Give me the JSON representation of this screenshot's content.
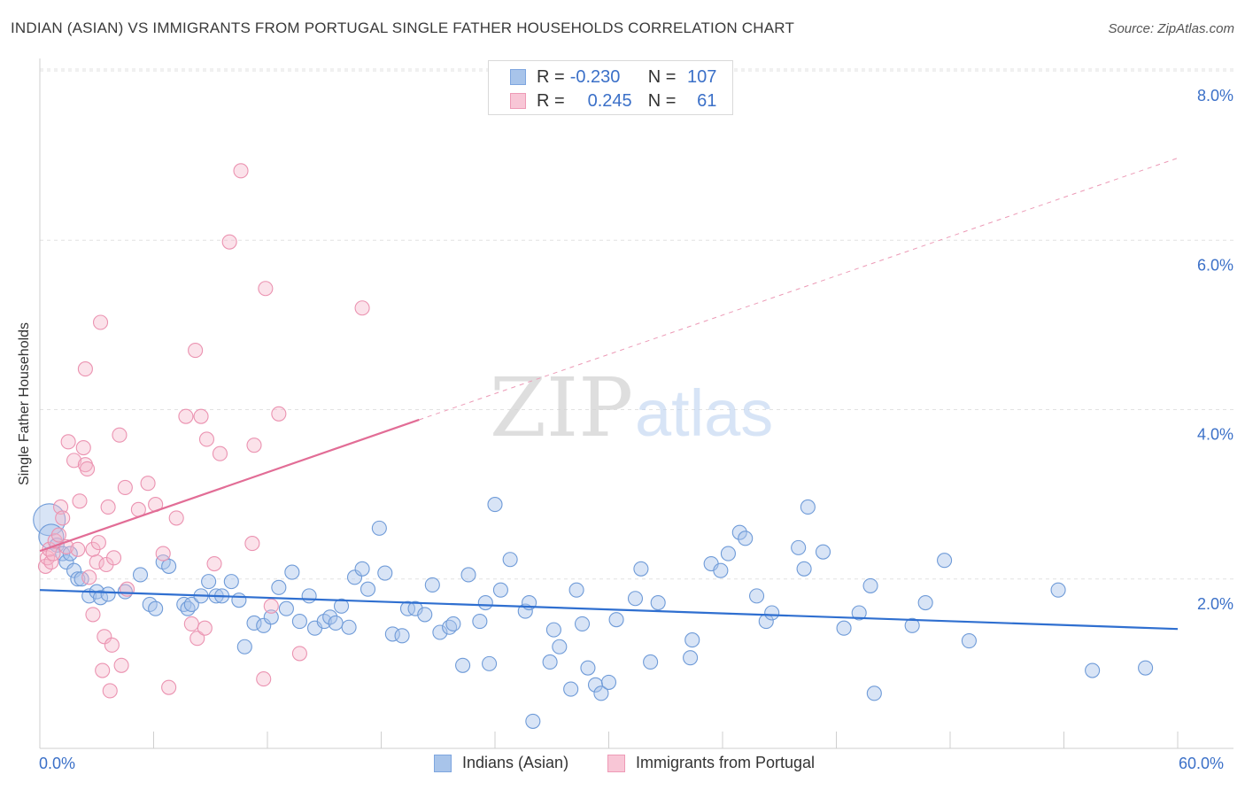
{
  "title": "INDIAN (ASIAN) VS IMMIGRANTS FROM PORTUGAL SINGLE FATHER HOUSEHOLDS CORRELATION CHART",
  "source": "Source: ZipAtlas.com",
  "watermark": {
    "zip": "ZIP",
    "atlas": "atlas"
  },
  "legend_top": {
    "rows": [
      {
        "r_label": "R =",
        "r_value": "-0.230",
        "n_label": "N =",
        "n_value": "107"
      },
      {
        "r_label": "R =",
        "r_value": "0.245",
        "n_label": "N =",
        "n_value": "61"
      }
    ]
  },
  "chart_data": {
    "type": "scatter",
    "title": "INDIAN (ASIAN) VS IMMIGRANTS FROM PORTUGAL SINGLE FATHER HOUSEHOLDS CORRELATION CHART",
    "xlabel": "",
    "ylabel": "Single Father Households",
    "xlim": [
      0,
      60
    ],
    "ylim": [
      0,
      8
    ],
    "x_tick_labels": [
      "0.0%",
      "60.0%"
    ],
    "y_ticks": [
      2,
      4,
      6,
      8
    ],
    "y_tick_labels": [
      "2.0%",
      "4.0%",
      "6.0%",
      "8.0%"
    ],
    "grid": true,
    "legend_position": "bottom",
    "colors": {
      "indians": "#a8c4ea",
      "indians_line": "#2f6fd0",
      "portugal": "#f4b6c8",
      "portugal_line": "#e26d96"
    },
    "series": [
      {
        "name": "Indians (Asian)",
        "r": -0.23,
        "n": 107,
        "trend": {
          "x": [
            0,
            60
          ],
          "y": [
            1.87,
            1.41
          ]
        },
        "points": [
          [
            0.5,
            2.7
          ],
          [
            0.6,
            2.5
          ],
          [
            0.9,
            2.4
          ],
          [
            1.2,
            2.3
          ],
          [
            1.4,
            2.2
          ],
          [
            1.6,
            2.3
          ],
          [
            1.8,
            2.1
          ],
          [
            2.0,
            2.0
          ],
          [
            2.2,
            2.0
          ],
          [
            2.6,
            1.8
          ],
          [
            3.0,
            1.85
          ],
          [
            3.2,
            1.78
          ],
          [
            3.6,
            1.82
          ],
          [
            4.5,
            1.85
          ],
          [
            5.3,
            2.05
          ],
          [
            5.8,
            1.7
          ],
          [
            6.1,
            1.65
          ],
          [
            6.5,
            2.2
          ],
          [
            6.8,
            2.15
          ],
          [
            7.6,
            1.7
          ],
          [
            7.8,
            1.65
          ],
          [
            8.0,
            1.7
          ],
          [
            8.5,
            1.8
          ],
          [
            8.9,
            1.97
          ],
          [
            9.3,
            1.8
          ],
          [
            9.6,
            1.8
          ],
          [
            10.1,
            1.97
          ],
          [
            10.5,
            1.75
          ],
          [
            10.8,
            1.2
          ],
          [
            11.3,
            1.48
          ],
          [
            11.8,
            1.45
          ],
          [
            12.2,
            1.55
          ],
          [
            12.6,
            1.9
          ],
          [
            13.0,
            1.65
          ],
          [
            13.3,
            2.08
          ],
          [
            13.7,
            1.5
          ],
          [
            14.2,
            1.8
          ],
          [
            14.5,
            1.42
          ],
          [
            15.0,
            1.5
          ],
          [
            15.3,
            1.55
          ],
          [
            15.6,
            1.48
          ],
          [
            15.9,
            1.68
          ],
          [
            16.3,
            1.43
          ],
          [
            16.6,
            2.02
          ],
          [
            17.0,
            2.12
          ],
          [
            17.3,
            1.88
          ],
          [
            17.9,
            2.6
          ],
          [
            18.2,
            2.07
          ],
          [
            18.6,
            1.35
          ],
          [
            19.1,
            1.33
          ],
          [
            19.4,
            1.65
          ],
          [
            19.8,
            1.65
          ],
          [
            20.3,
            1.58
          ],
          [
            20.7,
            1.93
          ],
          [
            21.1,
            1.37
          ],
          [
            21.6,
            1.43
          ],
          [
            21.8,
            1.47
          ],
          [
            22.3,
            0.98
          ],
          [
            22.6,
            2.05
          ],
          [
            23.2,
            1.5
          ],
          [
            23.5,
            1.72
          ],
          [
            23.7,
            1.0
          ],
          [
            24.0,
            2.88
          ],
          [
            24.3,
            1.87
          ],
          [
            24.8,
            2.23
          ],
          [
            25.6,
            1.62
          ],
          [
            25.8,
            1.72
          ],
          [
            26.0,
            0.32
          ],
          [
            26.9,
            1.02
          ],
          [
            27.1,
            1.4
          ],
          [
            27.4,
            1.2
          ],
          [
            28.0,
            0.7
          ],
          [
            28.3,
            1.87
          ],
          [
            28.6,
            1.47
          ],
          [
            28.9,
            0.95
          ],
          [
            29.3,
            0.75
          ],
          [
            29.6,
            0.65
          ],
          [
            30.0,
            0.78
          ],
          [
            30.4,
            1.52
          ],
          [
            31.4,
            1.77
          ],
          [
            31.7,
            2.12
          ],
          [
            32.2,
            1.02
          ],
          [
            32.6,
            1.72
          ],
          [
            34.3,
            1.07
          ],
          [
            34.4,
            1.28
          ],
          [
            35.4,
            2.18
          ],
          [
            35.9,
            2.1
          ],
          [
            36.3,
            2.3
          ],
          [
            36.9,
            2.55
          ],
          [
            37.2,
            2.48
          ],
          [
            37.8,
            1.8
          ],
          [
            38.3,
            1.5
          ],
          [
            38.6,
            1.6
          ],
          [
            40.0,
            2.37
          ],
          [
            40.3,
            2.12
          ],
          [
            40.5,
            2.85
          ],
          [
            41.3,
            2.32
          ],
          [
            42.4,
            1.42
          ],
          [
            43.2,
            1.6
          ],
          [
            43.8,
            1.92
          ],
          [
            44.0,
            0.65
          ],
          [
            46.0,
            1.45
          ],
          [
            46.7,
            1.72
          ],
          [
            47.7,
            2.22
          ],
          [
            49.0,
            1.27
          ],
          [
            53.7,
            1.87
          ],
          [
            55.5,
            0.92
          ],
          [
            58.3,
            0.95
          ]
        ]
      },
      {
        "name": "Immigrants from Portugal",
        "r": 0.245,
        "n": 61,
        "trend": {
          "x": [
            0,
            20
          ],
          "y": [
            2.33,
            3.88
          ]
        },
        "trend_extension": {
          "x": [
            20,
            60
          ],
          "y": [
            3.88,
            6.97
          ]
        },
        "points": [
          [
            0.3,
            2.15
          ],
          [
            0.4,
            2.25
          ],
          [
            0.5,
            2.35
          ],
          [
            0.6,
            2.2
          ],
          [
            0.7,
            2.3
          ],
          [
            0.8,
            2.45
          ],
          [
            1.0,
            2.52
          ],
          [
            1.1,
            2.85
          ],
          [
            1.2,
            2.72
          ],
          [
            1.4,
            2.38
          ],
          [
            1.5,
            3.62
          ],
          [
            1.8,
            3.4
          ],
          [
            2.0,
            2.35
          ],
          [
            2.1,
            2.92
          ],
          [
            2.3,
            3.55
          ],
          [
            2.4,
            4.48
          ],
          [
            2.4,
            3.35
          ],
          [
            2.5,
            3.3
          ],
          [
            2.6,
            2.02
          ],
          [
            2.8,
            2.35
          ],
          [
            2.8,
            1.58
          ],
          [
            3.0,
            2.2
          ],
          [
            3.1,
            2.43
          ],
          [
            3.2,
            5.03
          ],
          [
            3.3,
            0.92
          ],
          [
            3.4,
            1.32
          ],
          [
            3.5,
            2.17
          ],
          [
            3.6,
            2.85
          ],
          [
            3.7,
            0.68
          ],
          [
            3.8,
            1.22
          ],
          [
            3.9,
            2.25
          ],
          [
            4.2,
            3.7
          ],
          [
            4.3,
            0.98
          ],
          [
            4.5,
            3.08
          ],
          [
            4.6,
            1.88
          ],
          [
            5.2,
            2.82
          ],
          [
            5.7,
            3.13
          ],
          [
            6.1,
            2.88
          ],
          [
            6.5,
            2.3
          ],
          [
            6.8,
            0.72
          ],
          [
            7.2,
            2.72
          ],
          [
            7.7,
            3.92
          ],
          [
            8.0,
            1.47
          ],
          [
            8.2,
            4.7
          ],
          [
            8.3,
            1.3
          ],
          [
            8.5,
            3.92
          ],
          [
            8.7,
            1.42
          ],
          [
            8.8,
            3.65
          ],
          [
            9.2,
            2.18
          ],
          [
            9.5,
            3.48
          ],
          [
            10.0,
            5.98
          ],
          [
            10.6,
            6.82
          ],
          [
            11.2,
            2.42
          ],
          [
            11.3,
            3.58
          ],
          [
            11.8,
            0.82
          ],
          [
            11.9,
            5.43
          ],
          [
            12.2,
            1.68
          ],
          [
            12.6,
            3.95
          ],
          [
            13.7,
            1.12
          ],
          [
            17.0,
            5.2
          ]
        ]
      }
    ]
  }
}
